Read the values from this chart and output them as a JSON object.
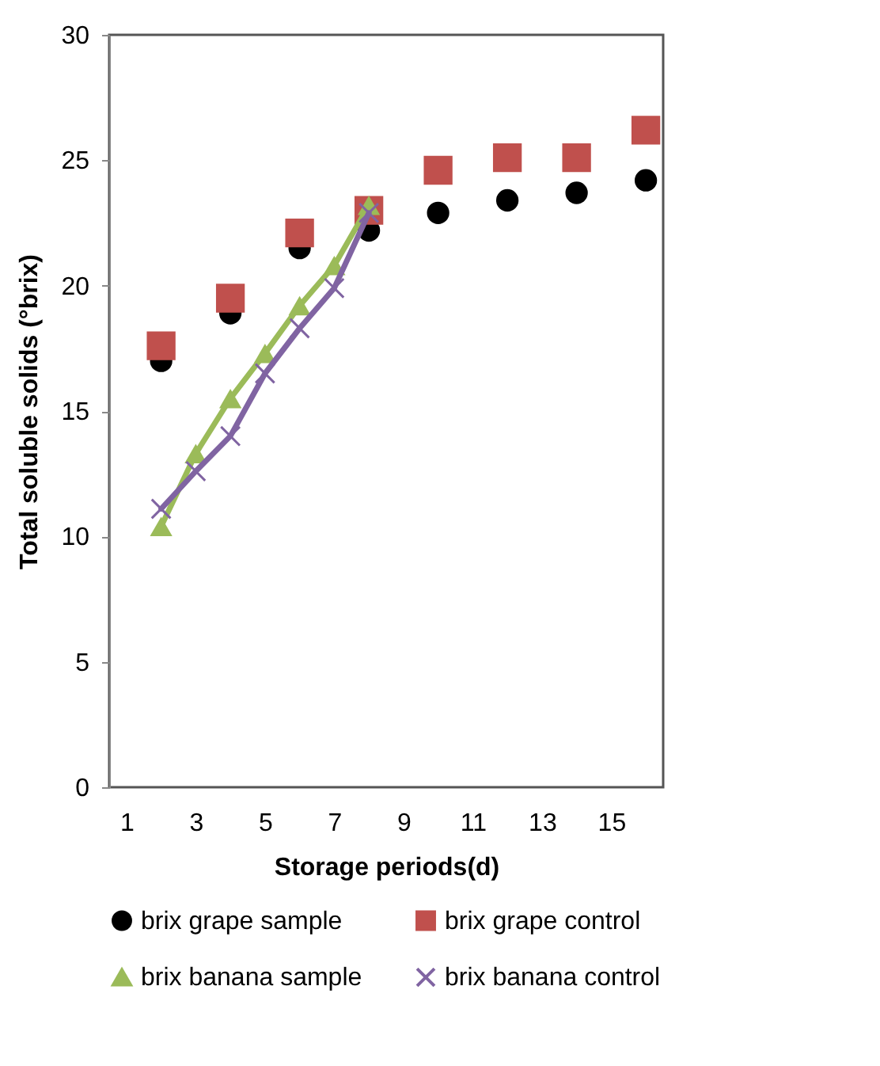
{
  "chart_data": {
    "type": "line",
    "xlabel": "Storage periods(d)",
    "ylabel": "Total soluble solids  (°brix)",
    "xlim": [
      0.5,
      16.5
    ],
    "xticks": [
      1,
      3,
      5,
      7,
      9,
      11,
      13,
      15
    ],
    "ylim": [
      0,
      30
    ],
    "yticks": [
      0,
      5,
      10,
      15,
      20,
      25,
      30
    ],
    "grid": false,
    "legend": "bottom",
    "series": [
      {
        "name": "brix grape sample",
        "type": "scatter",
        "marker": "circle",
        "color": "#000000",
        "x": [
          2,
          4,
          6,
          8,
          10,
          12,
          14,
          16
        ],
        "values": [
          17.0,
          18.9,
          21.5,
          22.2,
          22.9,
          23.4,
          23.7,
          24.2
        ]
      },
      {
        "name": "brix grape control",
        "type": "scatter",
        "marker": "square",
        "color": "#c0504d",
        "x": [
          2,
          4,
          6,
          8,
          10,
          12,
          14,
          16
        ],
        "values": [
          17.6,
          19.5,
          22.1,
          23.0,
          24.6,
          25.1,
          25.1,
          26.2
        ]
      },
      {
        "name": "brix banana sample",
        "type": "line",
        "marker": "triangle",
        "color": "#9bbb59",
        "x": [
          2,
          3,
          4,
          5,
          6,
          7,
          8
        ],
        "values": [
          10.4,
          13.3,
          15.5,
          17.3,
          19.2,
          20.8,
          23.2
        ]
      },
      {
        "name": "brix banana control",
        "type": "line",
        "marker": "cross",
        "color": "#8064a2",
        "x": [
          2,
          3,
          4,
          5,
          6,
          7,
          8
        ],
        "values": [
          11.1,
          12.6,
          14.0,
          16.5,
          18.3,
          19.9,
          22.9
        ]
      }
    ]
  }
}
